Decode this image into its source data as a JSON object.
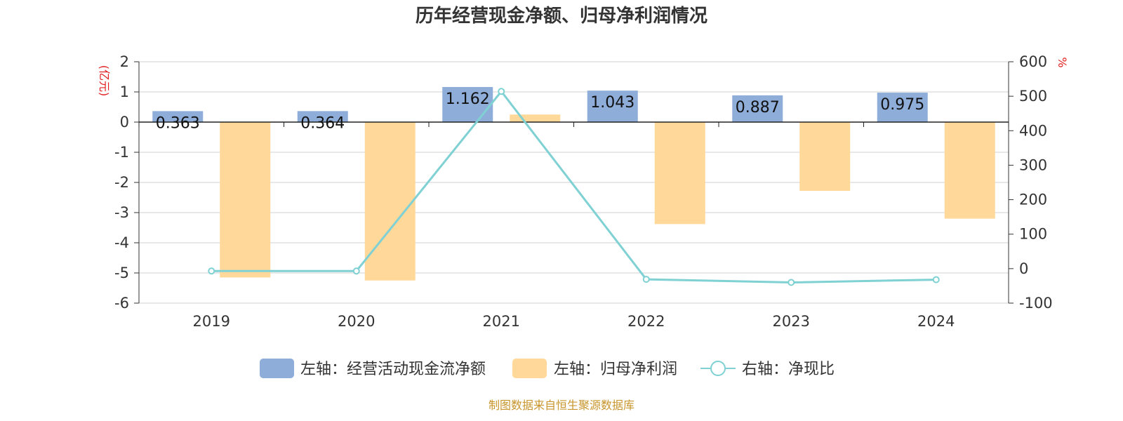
{
  "chart_data": {
    "type": "bar",
    "title": "历年经营现金净额、归母净利润情况",
    "categories": [
      "2019",
      "2020",
      "2021",
      "2022",
      "2023",
      "2024"
    ],
    "series": [
      {
        "name": "左轴：经营活动现金流净额",
        "axis": "left",
        "type": "bar",
        "color": "#8eadd9",
        "values": [
          0.363,
          0.364,
          1.162,
          1.043,
          0.887,
          0.975
        ],
        "labels": [
          "0.363",
          "0.364",
          "1.162",
          "1.043",
          "0.887",
          "0.975"
        ]
      },
      {
        "name": "左轴：归母净利润",
        "axis": "left",
        "type": "bar",
        "color": "#ffd89a",
        "values": [
          -5.15,
          -5.25,
          0.25,
          -3.38,
          -2.28,
          -3.2
        ]
      },
      {
        "name": "右轴：净现比",
        "axis": "right",
        "type": "line",
        "color": "#7fd1d3",
        "values": [
          -7,
          -7,
          514,
          -31,
          -40,
          -32
        ]
      }
    ],
    "left_axis": {
      "unit": "(亿元)",
      "ylim": [
        -6,
        2
      ],
      "ticks": [
        "2",
        "1",
        "0",
        "-1",
        "-2",
        "-3",
        "-4",
        "-5",
        "-6"
      ]
    },
    "right_axis": {
      "unit": "%",
      "ylim": [
        -100,
        600
      ],
      "ticks": [
        "600",
        "500",
        "400",
        "300",
        "200",
        "100",
        "0",
        "-100"
      ]
    },
    "grid": true,
    "legend_position": "bottom"
  },
  "source": "制图数据来自恒生聚源数据库"
}
